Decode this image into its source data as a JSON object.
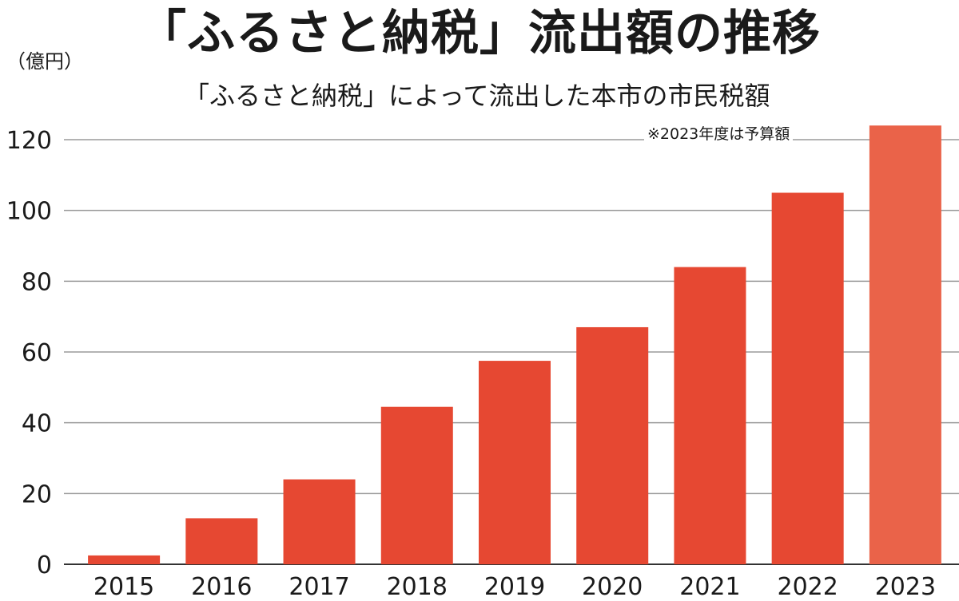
{
  "chart_data": {
    "type": "bar",
    "title": "「ふるさと納税」流出額の推移",
    "subtitle": "「ふるさと納税」によって流出した本市の市民税額",
    "unit_label": "（億円）",
    "note": "※2023年度は予算額",
    "categories": [
      "2015",
      "2016",
      "2017",
      "2018",
      "2019",
      "2020",
      "2021",
      "2022",
      "2023"
    ],
    "values": [
      2.5,
      13,
      24,
      44.5,
      57.5,
      67,
      84,
      105,
      124
    ],
    "highlight_index": 8,
    "yticks": [
      "0",
      "20",
      "40",
      "60",
      "80",
      "100",
      "120"
    ],
    "ylim": [
      0,
      120
    ],
    "grid": true,
    "colors": {
      "bar": "#e64832",
      "bar_highlight": "#ea6349",
      "grid": "#9a9a9a"
    }
  }
}
